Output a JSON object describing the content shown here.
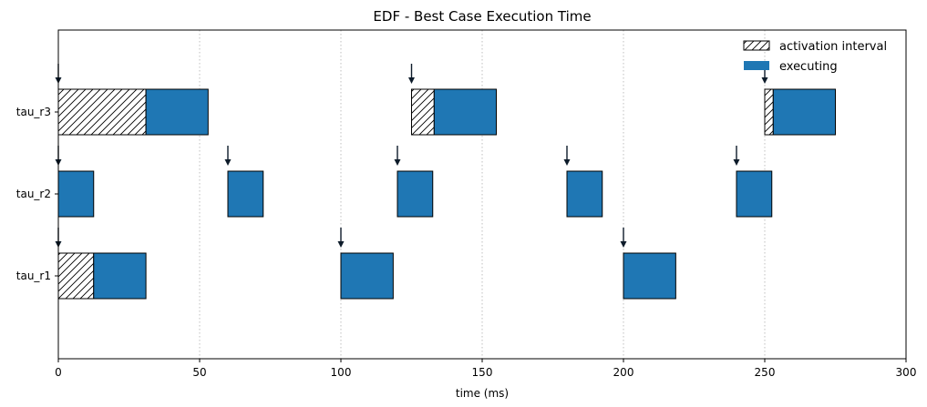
{
  "chart_data": {
    "type": "gantt",
    "title": "EDF - Best Case Execution Time",
    "xlabel": "time (ms)",
    "xlim": [
      0,
      300
    ],
    "xticks": [
      0,
      50,
      100,
      150,
      200,
      250,
      300
    ],
    "grid": "vertical-dotted",
    "legend_position": "top-right",
    "legend": [
      {
        "key": "activation",
        "label": "activation interval"
      },
      {
        "key": "executing",
        "label": "executing"
      }
    ],
    "colors": {
      "executing": "#1f77b4",
      "activation": "#ffffff",
      "arrow": "#0d1b2a"
    },
    "tasks": [
      {
        "name": "tau_r3",
        "activations": [
          0,
          125,
          250
        ],
        "intervals": [
          {
            "kind": "activation",
            "start": 0,
            "end": 31
          },
          {
            "kind": "executing",
            "start": 31,
            "end": 53
          },
          {
            "kind": "activation",
            "start": 125,
            "end": 133
          },
          {
            "kind": "executing",
            "start": 133,
            "end": 155
          },
          {
            "kind": "activation",
            "start": 250,
            "end": 253
          },
          {
            "kind": "executing",
            "start": 253,
            "end": 275
          }
        ]
      },
      {
        "name": "tau_r2",
        "activations": [
          0,
          60,
          120,
          180,
          240
        ],
        "intervals": [
          {
            "kind": "executing",
            "start": 0,
            "end": 12.5
          },
          {
            "kind": "executing",
            "start": 60,
            "end": 72.5
          },
          {
            "kind": "executing",
            "start": 120,
            "end": 132.5
          },
          {
            "kind": "executing",
            "start": 180,
            "end": 192.5
          },
          {
            "kind": "executing",
            "start": 240,
            "end": 252.5
          }
        ]
      },
      {
        "name": "tau_r1",
        "activations": [
          0,
          100,
          200
        ],
        "intervals": [
          {
            "kind": "activation",
            "start": 0,
            "end": 12.5
          },
          {
            "kind": "executing",
            "start": 12.5,
            "end": 31
          },
          {
            "kind": "executing",
            "start": 100,
            "end": 118.5
          },
          {
            "kind": "executing",
            "start": 200,
            "end": 218.5
          }
        ]
      }
    ]
  }
}
